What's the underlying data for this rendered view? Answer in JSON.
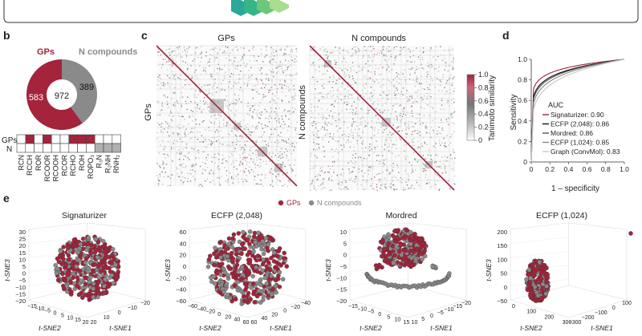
{
  "colors": {
    "gp": "#a3243b",
    "ncomp": "#8a8a8a",
    "hex_teal": "#2aa89a",
    "hex_green": "#7ccf6a"
  },
  "panel_b": {
    "label": "b",
    "legend_gps": "GPs",
    "legend_n": "N compounds",
    "donut_gps_value": "583",
    "donut_n_value": "389",
    "donut_total": "972",
    "grid_row_gps": "GPs",
    "grid_row_n": "N",
    "grid_columns": [
      "RCN",
      "RCCH",
      "ROR",
      "RCOOR",
      "RCOOH",
      "RCOR",
      "RCHO",
      "ROH",
      "ROPO₃",
      "R₃N",
      "R₂NH",
      "RNH₂"
    ]
  },
  "panel_c": {
    "label": "c",
    "title_left": "GPs",
    "title_right": "N compounds",
    "ylabel_left": "GPs",
    "ylabel_right": "N compounds",
    "colorbar_label": "Tanimoto similarity",
    "colorbar_ticks": [
      "1.0",
      "0.8",
      "0.6",
      "0.4",
      "0.2",
      "0"
    ]
  },
  "panel_d": {
    "label": "d",
    "xlabel": "1 – specificity",
    "ylabel": "Sensitivity",
    "ticks": [
      "0",
      "0.2",
      "0.4",
      "0.6",
      "0.8",
      "1.0"
    ],
    "legend_title": "AUC",
    "legend": [
      "Signaturizer: 0.90",
      "ECFP (2,048): 0.86",
      "Mordred: 0.86",
      "ECFP (1,024): 0.85",
      "Graph (ConvMol): 0.83"
    ]
  },
  "panel_e": {
    "label": "e",
    "legend_gps": "GPs",
    "legend_n": "N compounds",
    "plots": [
      {
        "title": "Signaturizer",
        "zticks": [
          "30",
          "25",
          "20",
          "15",
          "10",
          "5",
          "0",
          "−5",
          "−10",
          "−15",
          "−20"
        ],
        "x1ticks": [
          "−15",
          "−10",
          "−5",
          "0",
          "5",
          "10",
          "15",
          "20"
        ],
        "x2ticks": [
          "20",
          "10",
          "0",
          "−10",
          "−20"
        ],
        "xlabel1": "t-SNE2",
        "xlabel2": "t-SNE1",
        "zlabel": "t-SNE3"
      },
      {
        "title": "ECFP (2,048)",
        "zticks": [
          "60",
          "40",
          "20",
          "0",
          "−20",
          "−40",
          "−60"
        ],
        "x1ticks": [
          "−60",
          "−40",
          "−20",
          "0",
          "20",
          "40",
          "60"
        ],
        "x2ticks": [
          "60",
          "40",
          "20",
          "0",
          "−20",
          "−40"
        ],
        "xlabel1": "t-SNE2",
        "xlabel2": "t-SNE1",
        "zlabel": "t-SNE3"
      },
      {
        "title": "Mordred",
        "zticks": [
          "10",
          "5",
          "0",
          "−5",
          "−10",
          "−15",
          "−20"
        ],
        "x1ticks": [
          "−15",
          "−10",
          "−5",
          "0",
          "5",
          "10",
          "15"
        ],
        "x2ticks": [
          "10",
          "5",
          "0",
          "−5",
          "−10",
          "−15",
          "−20"
        ],
        "xlabel1": "t-SNE2",
        "xlabel2": "t-SNE1",
        "zlabel": "t-SNE3"
      },
      {
        "title": "ECFP (1,024)",
        "zticks": [
          "200",
          "150",
          "100",
          "50",
          "0",
          "−50"
        ],
        "x1ticks": [
          "0",
          "100",
          "200",
          "300"
        ],
        "x2ticks": [
          "−300",
          "−200",
          "−100",
          "0",
          "100"
        ],
        "xlabel1": "t-SNE2",
        "xlabel2": "t-SNE1",
        "zlabel": "t-SNE3"
      }
    ]
  }
}
